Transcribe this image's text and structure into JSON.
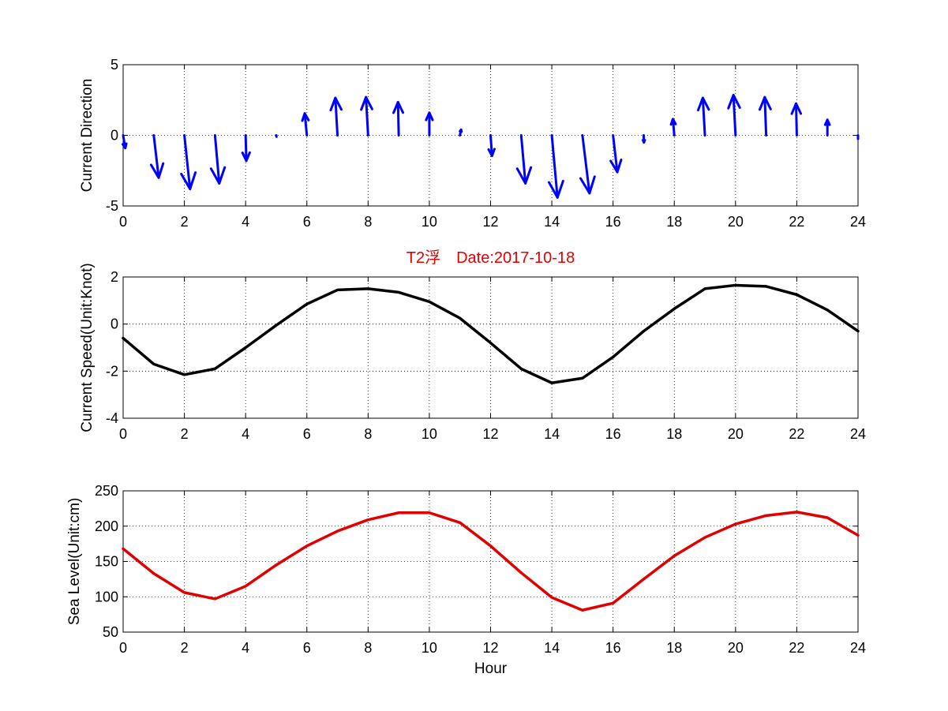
{
  "chart_data": [
    {
      "type": "quiver",
      "ylabel": "Current Direction",
      "xlim": [
        0,
        24
      ],
      "ylim": [
        -5,
        5
      ],
      "xticks": [
        "0",
        "2",
        "4",
        "6",
        "8",
        "10",
        "12",
        "14",
        "16",
        "18",
        "20",
        "22",
        "24"
      ],
      "yticks": [
        "5",
        "0",
        "-5"
      ],
      "grid": true,
      "color": "#0000ff",
      "x": [
        0,
        1,
        2,
        3,
        4,
        5,
        6,
        7,
        8,
        9,
        10,
        11,
        12,
        13,
        14,
        15,
        16,
        17,
        18,
        19,
        20,
        21,
        22,
        23,
        24
      ],
      "u": [
        0.15,
        0.35,
        0.4,
        0.3,
        0.05,
        0.02,
        -0.15,
        -0.15,
        -0.15,
        -0.05,
        0.0,
        0.08,
        0.1,
        0.3,
        0.4,
        0.5,
        0.3,
        0.02,
        -0.1,
        -0.15,
        -0.15,
        -0.1,
        -0.05,
        0.0,
        0.0
      ],
      "v": [
        -0.9,
        -3.0,
        -3.8,
        -3.4,
        -1.8,
        -0.1,
        1.55,
        2.65,
        2.7,
        2.35,
        1.6,
        0.4,
        -1.45,
        -3.4,
        -4.4,
        -4.1,
        -2.6,
        -0.5,
        1.15,
        2.65,
        2.85,
        2.7,
        2.25,
        1.1,
        -0.25
      ]
    },
    {
      "type": "line",
      "title": "T2浮　Date:2017-10-18",
      "ylabel": "Current Speed(Unit:Knot)",
      "xlim": [
        0,
        24
      ],
      "ylim": [
        -4,
        2
      ],
      "xticks": [
        "0",
        "2",
        "4",
        "6",
        "8",
        "10",
        "12",
        "14",
        "16",
        "18",
        "20",
        "22",
        "24"
      ],
      "yticks": [
        "2",
        "0",
        "-2",
        "-4"
      ],
      "grid": true,
      "color": "#000000",
      "x": [
        0,
        1,
        2,
        3,
        4,
        5,
        6,
        7,
        8,
        9,
        10,
        11,
        12,
        13,
        14,
        15,
        16,
        17,
        18,
        19,
        20,
        21,
        22,
        23,
        24
      ],
      "y": [
        -0.6,
        -1.7,
        -2.15,
        -1.9,
        -1.0,
        -0.05,
        0.85,
        1.45,
        1.5,
        1.35,
        0.95,
        0.25,
        -0.8,
        -1.9,
        -2.5,
        -2.3,
        -1.4,
        -0.3,
        0.65,
        1.5,
        1.65,
        1.6,
        1.25,
        0.6,
        -0.3
      ]
    },
    {
      "type": "line",
      "xlabel": "Hour",
      "ylabel": "Sea Level(Unit:cm)",
      "xlim": [
        0,
        24
      ],
      "ylim": [
        50,
        250
      ],
      "xticks": [
        "0",
        "2",
        "4",
        "6",
        "8",
        "10",
        "12",
        "14",
        "16",
        "18",
        "20",
        "22",
        "24"
      ],
      "yticks": [
        "250",
        "200",
        "150",
        "100",
        "50"
      ],
      "grid": true,
      "color": "#e00000",
      "x": [
        0,
        1,
        2,
        3,
        4,
        5,
        6,
        7,
        8,
        9,
        10,
        11,
        12,
        13,
        14,
        15,
        16,
        17,
        18,
        19,
        20,
        21,
        22,
        23,
        24
      ],
      "y": [
        168,
        133,
        106,
        97,
        115,
        145,
        172,
        193,
        209,
        219,
        219,
        205,
        172,
        134,
        99,
        81,
        91,
        125,
        158,
        184,
        203,
        215,
        220,
        212,
        187
      ]
    }
  ]
}
